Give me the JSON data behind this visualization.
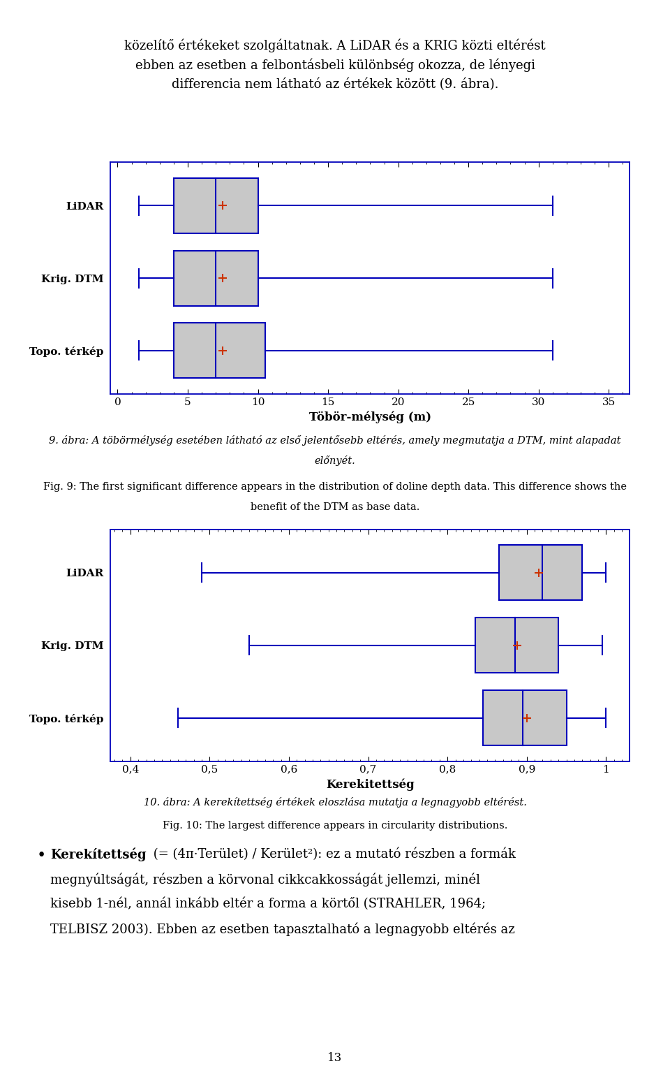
{
  "page_top_text_lines": [
    "közelítő értékeket szolgáltatnak. A LiDAR és a KRIG közti eltérést",
    "ebben az esetben a felbontásbeli különbség okozza, de lényegi",
    "differencia nem látható az értékek között (9. ábra)."
  ],
  "plot1": {
    "labels": [
      "LiDAR",
      "Krig. DTM",
      "Topo. térkép"
    ],
    "whisker_min": [
      1.5,
      1.5,
      1.5
    ],
    "q1": [
      4.0,
      4.0,
      4.0
    ],
    "median": [
      7.0,
      7.0,
      7.0
    ],
    "q3": [
      10.0,
      10.0,
      10.5
    ],
    "whisker_max": [
      31.0,
      31.0,
      31.0
    ],
    "mean": [
      7.5,
      7.5,
      7.5
    ],
    "xlabel": "Töbör-mélység (m)",
    "xticks": [
      0,
      5,
      10,
      15,
      20,
      25,
      30,
      35
    ],
    "xlim": [
      -0.5,
      36.5
    ]
  },
  "caption1_hu_line1": "9. ábra: A töbörmélység esetében látható az első jelentősebb eltérés, amely megmutatja a DTM, mint alapadat",
  "caption1_hu_line2": "előnyét.",
  "caption1_en_line1": "Fig. 9: The first significant difference appears in the distribution of doline depth data. This difference shows the",
  "caption1_en_line2": "benefit of the DTM as base data.",
  "plot2": {
    "labels": [
      "LiDAR",
      "Krig. DTM",
      "Topo. térkép"
    ],
    "whisker_min": [
      0.49,
      0.55,
      0.46
    ],
    "q1": [
      0.865,
      0.835,
      0.845
    ],
    "median": [
      0.92,
      0.885,
      0.895
    ],
    "q3": [
      0.97,
      0.94,
      0.95
    ],
    "whisker_max": [
      1.0,
      0.995,
      1.0
    ],
    "mean": [
      0.915,
      0.888,
      0.9
    ],
    "xlabel": "Kerekitettség",
    "xtick_labels": [
      "0,4",
      "0,5",
      "0,6",
      "0,7",
      "0,8",
      "0,9",
      "1"
    ],
    "xticks": [
      0.4,
      0.5,
      0.6,
      0.7,
      0.8,
      0.9,
      1.0
    ],
    "xlim": [
      0.375,
      1.03
    ]
  },
  "caption2_hu": "10. ábra: A kerekítettség értékek eloszlása mutatja a legnagyobb eltérést.",
  "caption2_en": "Fig. 10: The largest difference appears in circularity distributions.",
  "bullet_bold": "Kerekítettség",
  "bullet_rest": " (= (4π·Terület) / Kerület²): ez a mutató részben a formák",
  "bullet_line2": "megnyúltságát, részben a körvonal cikkcakkosságát jellemzi, minél",
  "bullet_line3": "kisebb 1-nél, annál inkább eltér a forma a körtől (STRAHLER, 1964;",
  "bullet_line4": "TELBISZ 2003). Ebben az esetben tapasztalható a legnagyobb eltérés az",
  "box_color": "#c8c8c8",
  "box_edge_color": "#0000bb",
  "whisker_color": "#0000bb",
  "mean_color": "#cc3300",
  "page_number": "13"
}
